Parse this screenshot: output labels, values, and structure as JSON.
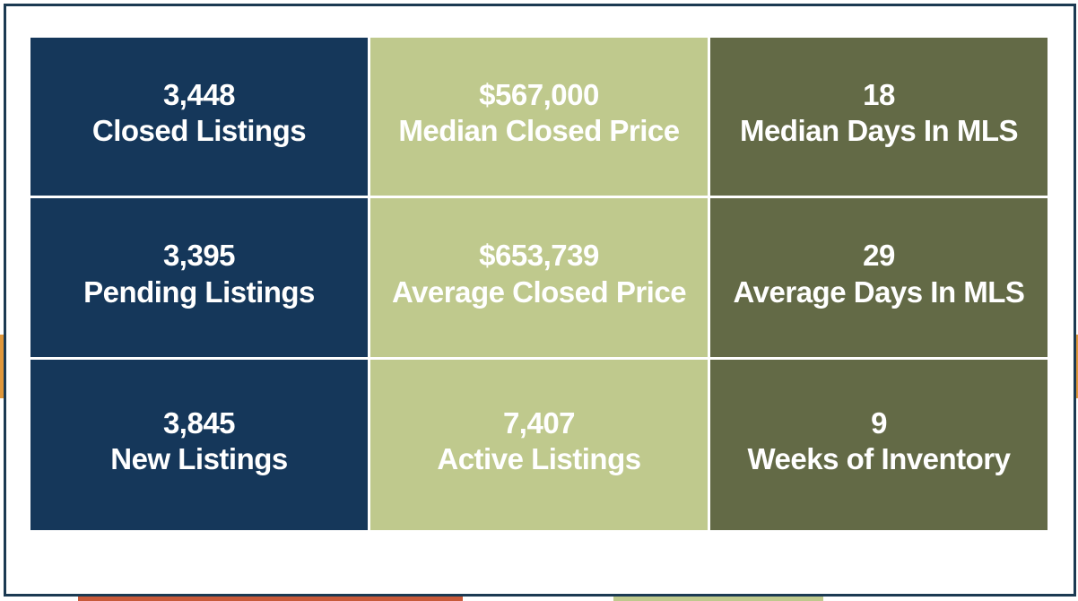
{
  "colors": {
    "navy": "#15375a",
    "lime": "#bfc98d",
    "olive": "#636a46",
    "frame_border": "#1b3a52",
    "accent_orange": "#e0973a",
    "accent_rust": "#c85a3a",
    "accent_green": "#bfc98d"
  },
  "tiles": [
    {
      "value": "3,448",
      "label": "Closed Listings",
      "color": "#15375a"
    },
    {
      "value": "$567,000",
      "label": "Median Closed Price",
      "color": "#bfc98d"
    },
    {
      "value": "18",
      "label": "Median Days In MLS",
      "color": "#636a46"
    },
    {
      "value": "3,395",
      "label": "Pending Listings",
      "color": "#15375a"
    },
    {
      "value": "$653,739",
      "label": "Average Closed Price",
      "color": "#bfc98d"
    },
    {
      "value": "29",
      "label": "Average Days In MLS",
      "color": "#636a46"
    },
    {
      "value": "3,845",
      "label": "New Listings",
      "color": "#15375a"
    },
    {
      "value": "7,407",
      "label": "Active Listings",
      "color": "#bfc98d"
    },
    {
      "value": "9",
      "label": "Weeks of Inventory",
      "color": "#636a46"
    }
  ]
}
